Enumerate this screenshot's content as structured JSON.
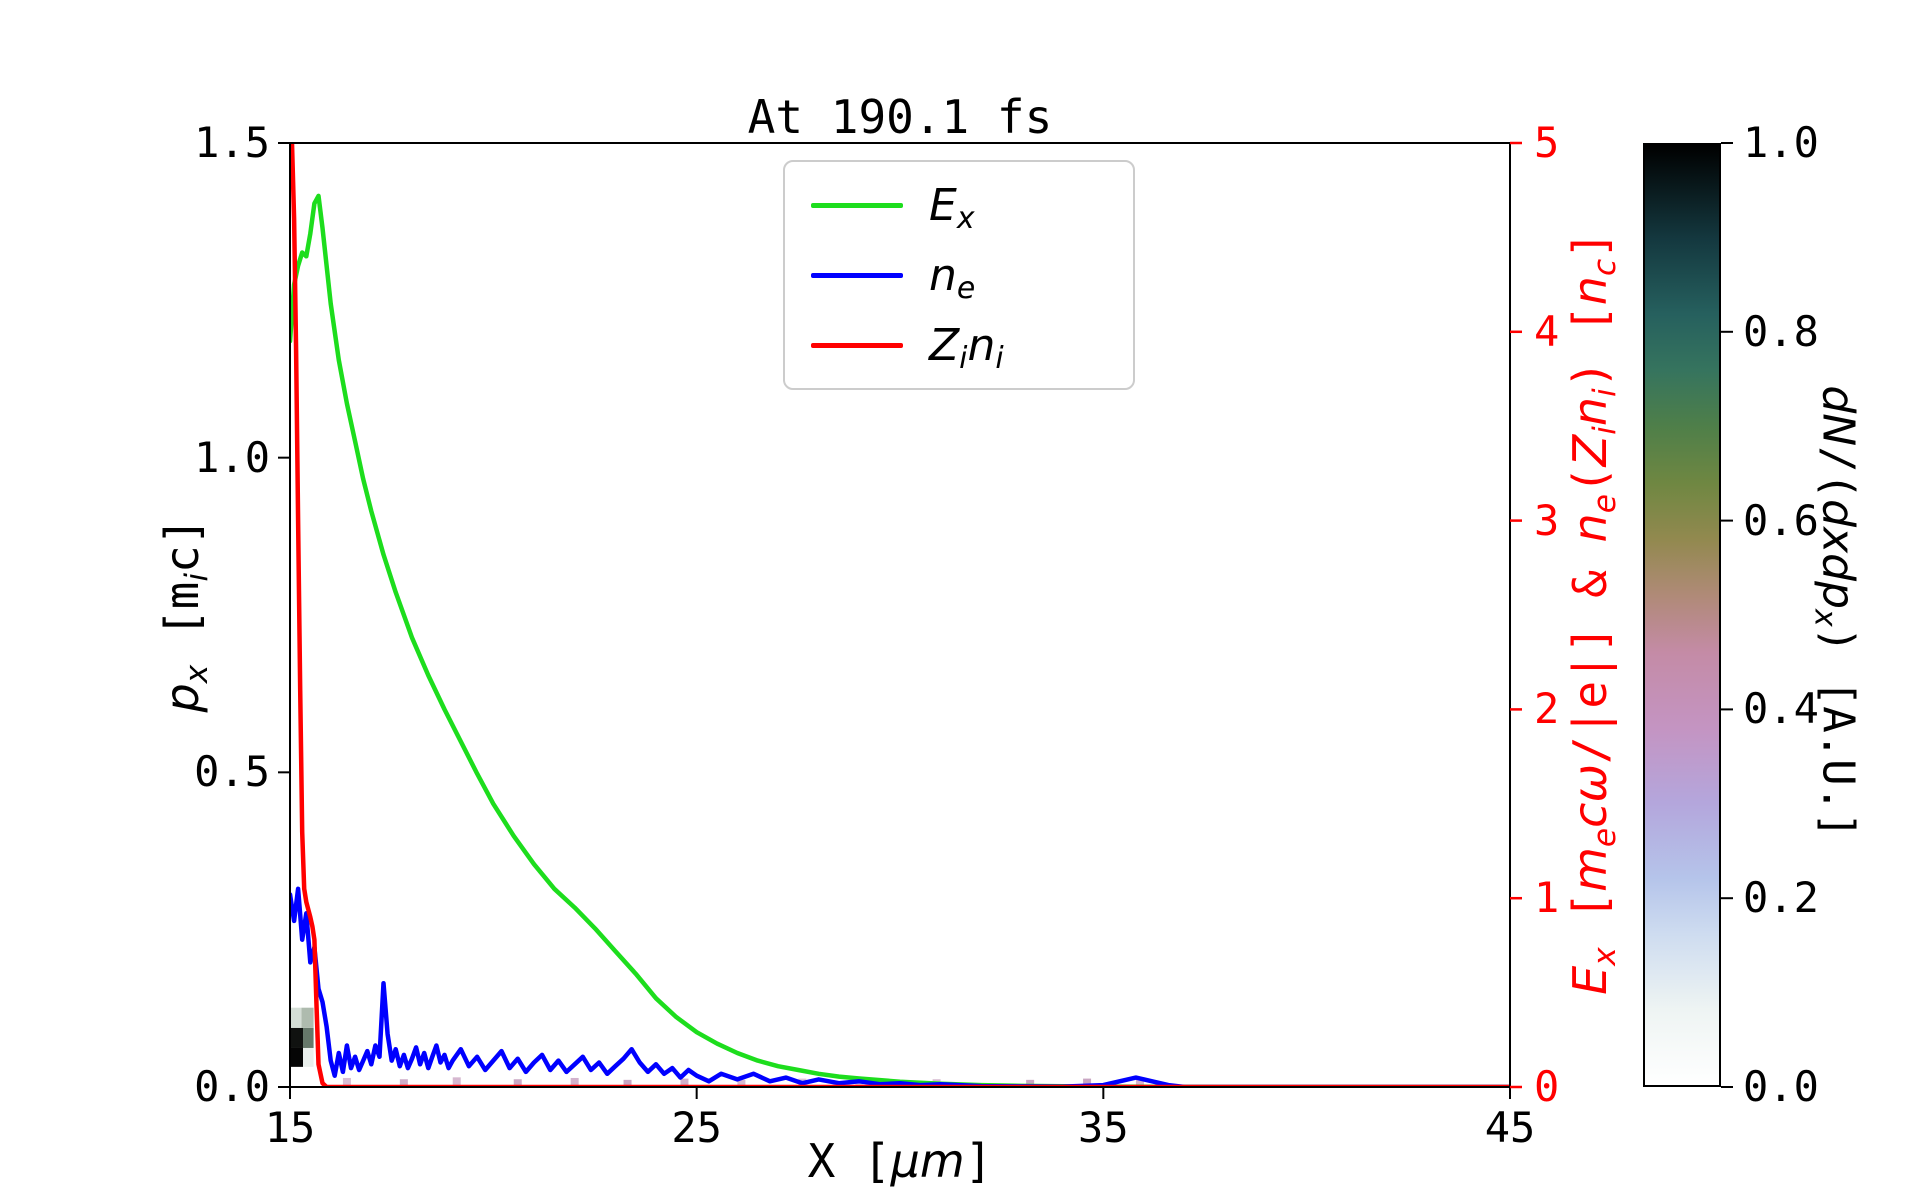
{
  "title": "At 190.1 fs",
  "axes": {
    "x": {
      "range": [
        15,
        45
      ],
      "ticks": [
        {
          "v": 15,
          "label": "15"
        },
        {
          "v": 25,
          "label": "25"
        },
        {
          "v": 35,
          "label": "35"
        },
        {
          "v": 45,
          "label": "45"
        }
      ],
      "label_parts": [
        {
          "t": "X [",
          "f": "m"
        },
        {
          "t": "μm",
          "f": "i"
        },
        {
          "t": "]",
          "f": "m"
        }
      ]
    },
    "y_left": {
      "range": [
        0,
        1.5
      ],
      "ticks": [
        {
          "v": 0,
          "label": "0.0"
        },
        {
          "v": 0.5,
          "label": "0.5"
        },
        {
          "v": 1.0,
          "label": "1.0"
        },
        {
          "v": 1.5,
          "label": "1.5"
        }
      ],
      "label_parts": [
        {
          "t": "p",
          "f": "i"
        },
        {
          "t": "x",
          "f": "i",
          "sub": true
        },
        {
          "t": " [m",
          "f": "m"
        },
        {
          "t": "i",
          "f": "i",
          "sub": true
        },
        {
          "t": "c]",
          "f": "m"
        }
      ]
    },
    "y_right": {
      "range": [
        0,
        5
      ],
      "color": "#ff0000",
      "ticks": [
        {
          "v": 0,
          "label": "0"
        },
        {
          "v": 1,
          "label": "1"
        },
        {
          "v": 2,
          "label": "2"
        },
        {
          "v": 3,
          "label": "3"
        },
        {
          "v": 4,
          "label": "4"
        },
        {
          "v": 5,
          "label": "5"
        }
      ],
      "label_parts": [
        {
          "t": "E",
          "f": "i"
        },
        {
          "t": "x",
          "f": "i",
          "sub": true
        },
        {
          "t": " [",
          "f": "m"
        },
        {
          "t": "m",
          "f": "i"
        },
        {
          "t": "e",
          "f": "i",
          "sub": true
        },
        {
          "t": "c",
          "f": "i"
        },
        {
          "t": "ω",
          "f": "i"
        },
        {
          "t": "/|e|] & ",
          "f": "m"
        },
        {
          "t": "n",
          "f": "i"
        },
        {
          "t": "e",
          "f": "i",
          "sub": true
        },
        {
          "t": "(",
          "f": "m"
        },
        {
          "t": "Z",
          "f": "i"
        },
        {
          "t": "i",
          "f": "i",
          "sub": true
        },
        {
          "t": "n",
          "f": "i"
        },
        {
          "t": "i",
          "f": "i",
          "sub": true
        },
        {
          "t": ") [",
          "f": "m"
        },
        {
          "t": "n",
          "f": "i"
        },
        {
          "t": "c",
          "f": "i",
          "sub": true
        },
        {
          "t": "]",
          "f": "m"
        }
      ]
    }
  },
  "legend": {
    "items": [
      {
        "id": "Ex",
        "color": "#1ddd1d",
        "parts": [
          {
            "t": "E",
            "f": "i"
          },
          {
            "t": "x",
            "f": "i",
            "sub": true
          }
        ]
      },
      {
        "id": "ne",
        "color": "#0000ff",
        "parts": [
          {
            "t": "n",
            "f": "i"
          },
          {
            "t": "e",
            "f": "i",
            "sub": true
          }
        ]
      },
      {
        "id": "Zini",
        "color": "#ff0000",
        "parts": [
          {
            "t": "Z",
            "f": "i"
          },
          {
            "t": "i",
            "f": "i",
            "sub": true
          },
          {
            "t": "n",
            "f": "i"
          },
          {
            "t": "i",
            "f": "i",
            "sub": true
          }
        ]
      }
    ]
  },
  "colorbar": {
    "range": [
      0,
      1
    ],
    "ticks": [
      {
        "v": 0,
        "label": "0.0"
      },
      {
        "v": 0.2,
        "label": "0.2"
      },
      {
        "v": 0.4,
        "label": "0.4"
      },
      {
        "v": 0.6,
        "label": "0.6"
      },
      {
        "v": 0.8,
        "label": "0.8"
      },
      {
        "v": 1.0,
        "label": "1.0"
      }
    ],
    "label_parts": [
      {
        "t": "dN",
        "f": "i"
      },
      {
        "t": "/(",
        "f": "m"
      },
      {
        "t": "dxdp",
        "f": "i"
      },
      {
        "t": "x",
        "f": "i",
        "sub": true
      },
      {
        "t": ")",
        "f": "m"
      },
      {
        "t": " [A.U.]",
        "f": "m"
      }
    ],
    "stops": [
      [
        0.0,
        "#ffffff"
      ],
      [
        0.08,
        "#eef4f3"
      ],
      [
        0.16,
        "#cedcf0"
      ],
      [
        0.22,
        "#b5c4ea"
      ],
      [
        0.3,
        "#b4a6dc"
      ],
      [
        0.38,
        "#c494c2"
      ],
      [
        0.46,
        "#c48ba6"
      ],
      [
        0.52,
        "#b08a78"
      ],
      [
        0.58,
        "#92894f"
      ],
      [
        0.64,
        "#6f8742"
      ],
      [
        0.7,
        "#4f7f49"
      ],
      [
        0.76,
        "#36745e"
      ],
      [
        0.82,
        "#26605e"
      ],
      [
        0.9,
        "#14383f"
      ],
      [
        1.0,
        "#000000"
      ]
    ]
  },
  "chart_data": {
    "type": "line",
    "title": "At 190.1 fs",
    "xlabel": "X [um]",
    "ylabel_left": "p_x [m_i c]",
    "ylabel_right": "E_x [m_e c w/|e|] & n_e(Z_i n_i) [n_c]",
    "colorbar_label": "dN/(dxdp_x) [A.U.]",
    "x_range": [
      15,
      45
    ],
    "left_axis_range": [
      0,
      1.5
    ],
    "right_axis_range": [
      0,
      5
    ],
    "grid": false,
    "legend_position": "upper center-left inside axes",
    "series": [
      {
        "name": "Ex",
        "color": "#1ddd1d",
        "axis": "right",
        "x": [
          15.0,
          15.1,
          15.2,
          15.3,
          15.4,
          15.5,
          15.6,
          15.7,
          15.8,
          15.9,
          16.0,
          16.2,
          16.4,
          16.6,
          16.8,
          17.0,
          17.3,
          17.6,
          18.0,
          18.4,
          18.8,
          19.2,
          19.6,
          20.0,
          20.5,
          21.0,
          21.5,
          22.0,
          22.5,
          23.0,
          23.5,
          24.0,
          24.5,
          25.0,
          25.5,
          26.0,
          26.5,
          27.0,
          27.5,
          28.0,
          28.5,
          29.0,
          30.0,
          31.0,
          32.0,
          33.0,
          34.0,
          35.0,
          36.0,
          38.0,
          40.0,
          45.0
        ],
        "y": [
          3.95,
          4.25,
          4.35,
          4.42,
          4.4,
          4.52,
          4.68,
          4.72,
          4.55,
          4.35,
          4.15,
          3.85,
          3.62,
          3.42,
          3.22,
          3.05,
          2.82,
          2.62,
          2.38,
          2.18,
          2.0,
          1.83,
          1.66,
          1.5,
          1.33,
          1.18,
          1.05,
          0.95,
          0.84,
          0.72,
          0.6,
          0.47,
          0.37,
          0.29,
          0.23,
          0.18,
          0.14,
          0.11,
          0.09,
          0.07,
          0.055,
          0.045,
          0.028,
          0.017,
          0.01,
          0.006,
          0.004,
          0.002,
          0.001,
          0.0,
          0.0,
          0.0
        ]
      },
      {
        "name": "ne",
        "color": "#0000ff",
        "axis": "right",
        "x": [
          15.0,
          15.1,
          15.2,
          15.3,
          15.4,
          15.5,
          15.6,
          15.7,
          15.8,
          15.9,
          16.0,
          16.1,
          16.2,
          16.3,
          16.4,
          16.5,
          16.6,
          16.7,
          16.8,
          16.9,
          17.0,
          17.1,
          17.2,
          17.3,
          17.4,
          17.5,
          17.6,
          17.7,
          17.8,
          17.9,
          18.0,
          18.1,
          18.2,
          18.3,
          18.4,
          18.5,
          18.6,
          18.7,
          18.8,
          18.9,
          19.0,
          19.2,
          19.4,
          19.6,
          19.8,
          20.0,
          20.2,
          20.4,
          20.6,
          20.8,
          21.0,
          21.2,
          21.4,
          21.6,
          21.8,
          22.0,
          22.2,
          22.4,
          22.6,
          22.8,
          23.0,
          23.2,
          23.4,
          23.6,
          23.8,
          24.0,
          24.2,
          24.4,
          24.6,
          24.8,
          25.0,
          25.3,
          25.6,
          26.0,
          26.4,
          26.8,
          27.2,
          27.6,
          28.0,
          28.5,
          29.0,
          29.5,
          30.0,
          30.5,
          31.0,
          32.0,
          33.0,
          34.0,
          35.0,
          35.8,
          36.2,
          36.6,
          37.0,
          40.0,
          45.0
        ],
        "y": [
          1.02,
          0.88,
          1.05,
          0.78,
          0.92,
          0.66,
          0.74,
          0.52,
          0.45,
          0.32,
          0.14,
          0.06,
          0.18,
          0.08,
          0.22,
          0.1,
          0.16,
          0.09,
          0.14,
          0.19,
          0.12,
          0.22,
          0.16,
          0.55,
          0.28,
          0.14,
          0.2,
          0.11,
          0.17,
          0.1,
          0.15,
          0.21,
          0.12,
          0.18,
          0.1,
          0.16,
          0.22,
          0.13,
          0.17,
          0.1,
          0.14,
          0.2,
          0.11,
          0.16,
          0.09,
          0.14,
          0.19,
          0.1,
          0.15,
          0.08,
          0.13,
          0.17,
          0.09,
          0.14,
          0.08,
          0.12,
          0.16,
          0.09,
          0.13,
          0.07,
          0.11,
          0.15,
          0.2,
          0.13,
          0.08,
          0.12,
          0.07,
          0.1,
          0.05,
          0.09,
          0.06,
          0.03,
          0.07,
          0.04,
          0.07,
          0.03,
          0.05,
          0.02,
          0.04,
          0.02,
          0.03,
          0.015,
          0.02,
          0.01,
          0.015,
          0.005,
          0.003,
          0.002,
          0.01,
          0.05,
          0.03,
          0.01,
          0.0,
          0.0,
          0.0
        ]
      },
      {
        "name": "Zini",
        "color": "#ff0000",
        "axis": "right",
        "x": [
          15.0,
          15.02,
          15.05,
          15.1,
          15.15,
          15.2,
          15.25,
          15.3,
          15.35,
          15.4,
          15.5,
          15.55,
          15.6,
          15.65,
          15.7,
          15.8,
          15.9,
          16.0,
          17.0,
          45.0
        ],
        "y": [
          5.0,
          5.0,
          5.0,
          4.6,
          3.9,
          3.0,
          2.1,
          1.35,
          1.05,
          0.98,
          0.9,
          0.85,
          0.78,
          0.45,
          0.12,
          0.02,
          0.0,
          0.0,
          0.0,
          0.0
        ]
      }
    ],
    "phase_space": {
      "units": "x in um, p in m_i c (left axis)",
      "cells": [
        {
          "x0": 15.02,
          "x1": 15.32,
          "p0": 0.032,
          "p1": 0.062,
          "c": "#050505"
        },
        {
          "x0": 15.02,
          "x1": 15.32,
          "p0": 0.062,
          "p1": 0.094,
          "c": "#101210"
        },
        {
          "x0": 15.32,
          "x1": 15.58,
          "p0": 0.062,
          "p1": 0.094,
          "c": "#66786a"
        },
        {
          "x0": 15.28,
          "x1": 15.58,
          "p0": 0.094,
          "p1": 0.126,
          "c": "#aebbae"
        },
        {
          "x0": 15.02,
          "x1": 15.28,
          "p0": 0.094,
          "p1": 0.126,
          "c": "#d4ded6"
        },
        {
          "x0": 15.32,
          "x1": 15.58,
          "p0": 0.032,
          "p1": 0.062,
          "c": "#e9efec"
        }
      ],
      "dots": [
        {
          "x": 16.4,
          "p": 0.008,
          "c": "#d9bed4"
        },
        {
          "x": 17.8,
          "p": 0.006,
          "c": "#ceaec9"
        },
        {
          "x": 19.1,
          "p": 0.009,
          "c": "#d6b8d0"
        },
        {
          "x": 20.6,
          "p": 0.006,
          "c": "#cbaac6"
        },
        {
          "x": 22.0,
          "p": 0.008,
          "c": "#d2b2cc"
        },
        {
          "x": 23.3,
          "p": 0.005,
          "c": "#c8a6c2"
        },
        {
          "x": 24.7,
          "p": 0.007,
          "c": "#d0afc9"
        },
        {
          "x": 26.1,
          "p": 0.005,
          "c": "#d7bad1"
        },
        {
          "x": 27.6,
          "p": 0.007,
          "c": "#ddc4d7"
        },
        {
          "x": 29.0,
          "p": 0.005,
          "c": "#e2cddc"
        },
        {
          "x": 30.9,
          "p": 0.006,
          "c": "#d8bcd2"
        },
        {
          "x": 33.2,
          "p": 0.005,
          "c": "#caa8c4"
        },
        {
          "x": 34.6,
          "p": 0.007,
          "c": "#c9a6c3"
        },
        {
          "x": 35.9,
          "p": 0.005,
          "c": "#d4b4ce"
        }
      ]
    }
  }
}
